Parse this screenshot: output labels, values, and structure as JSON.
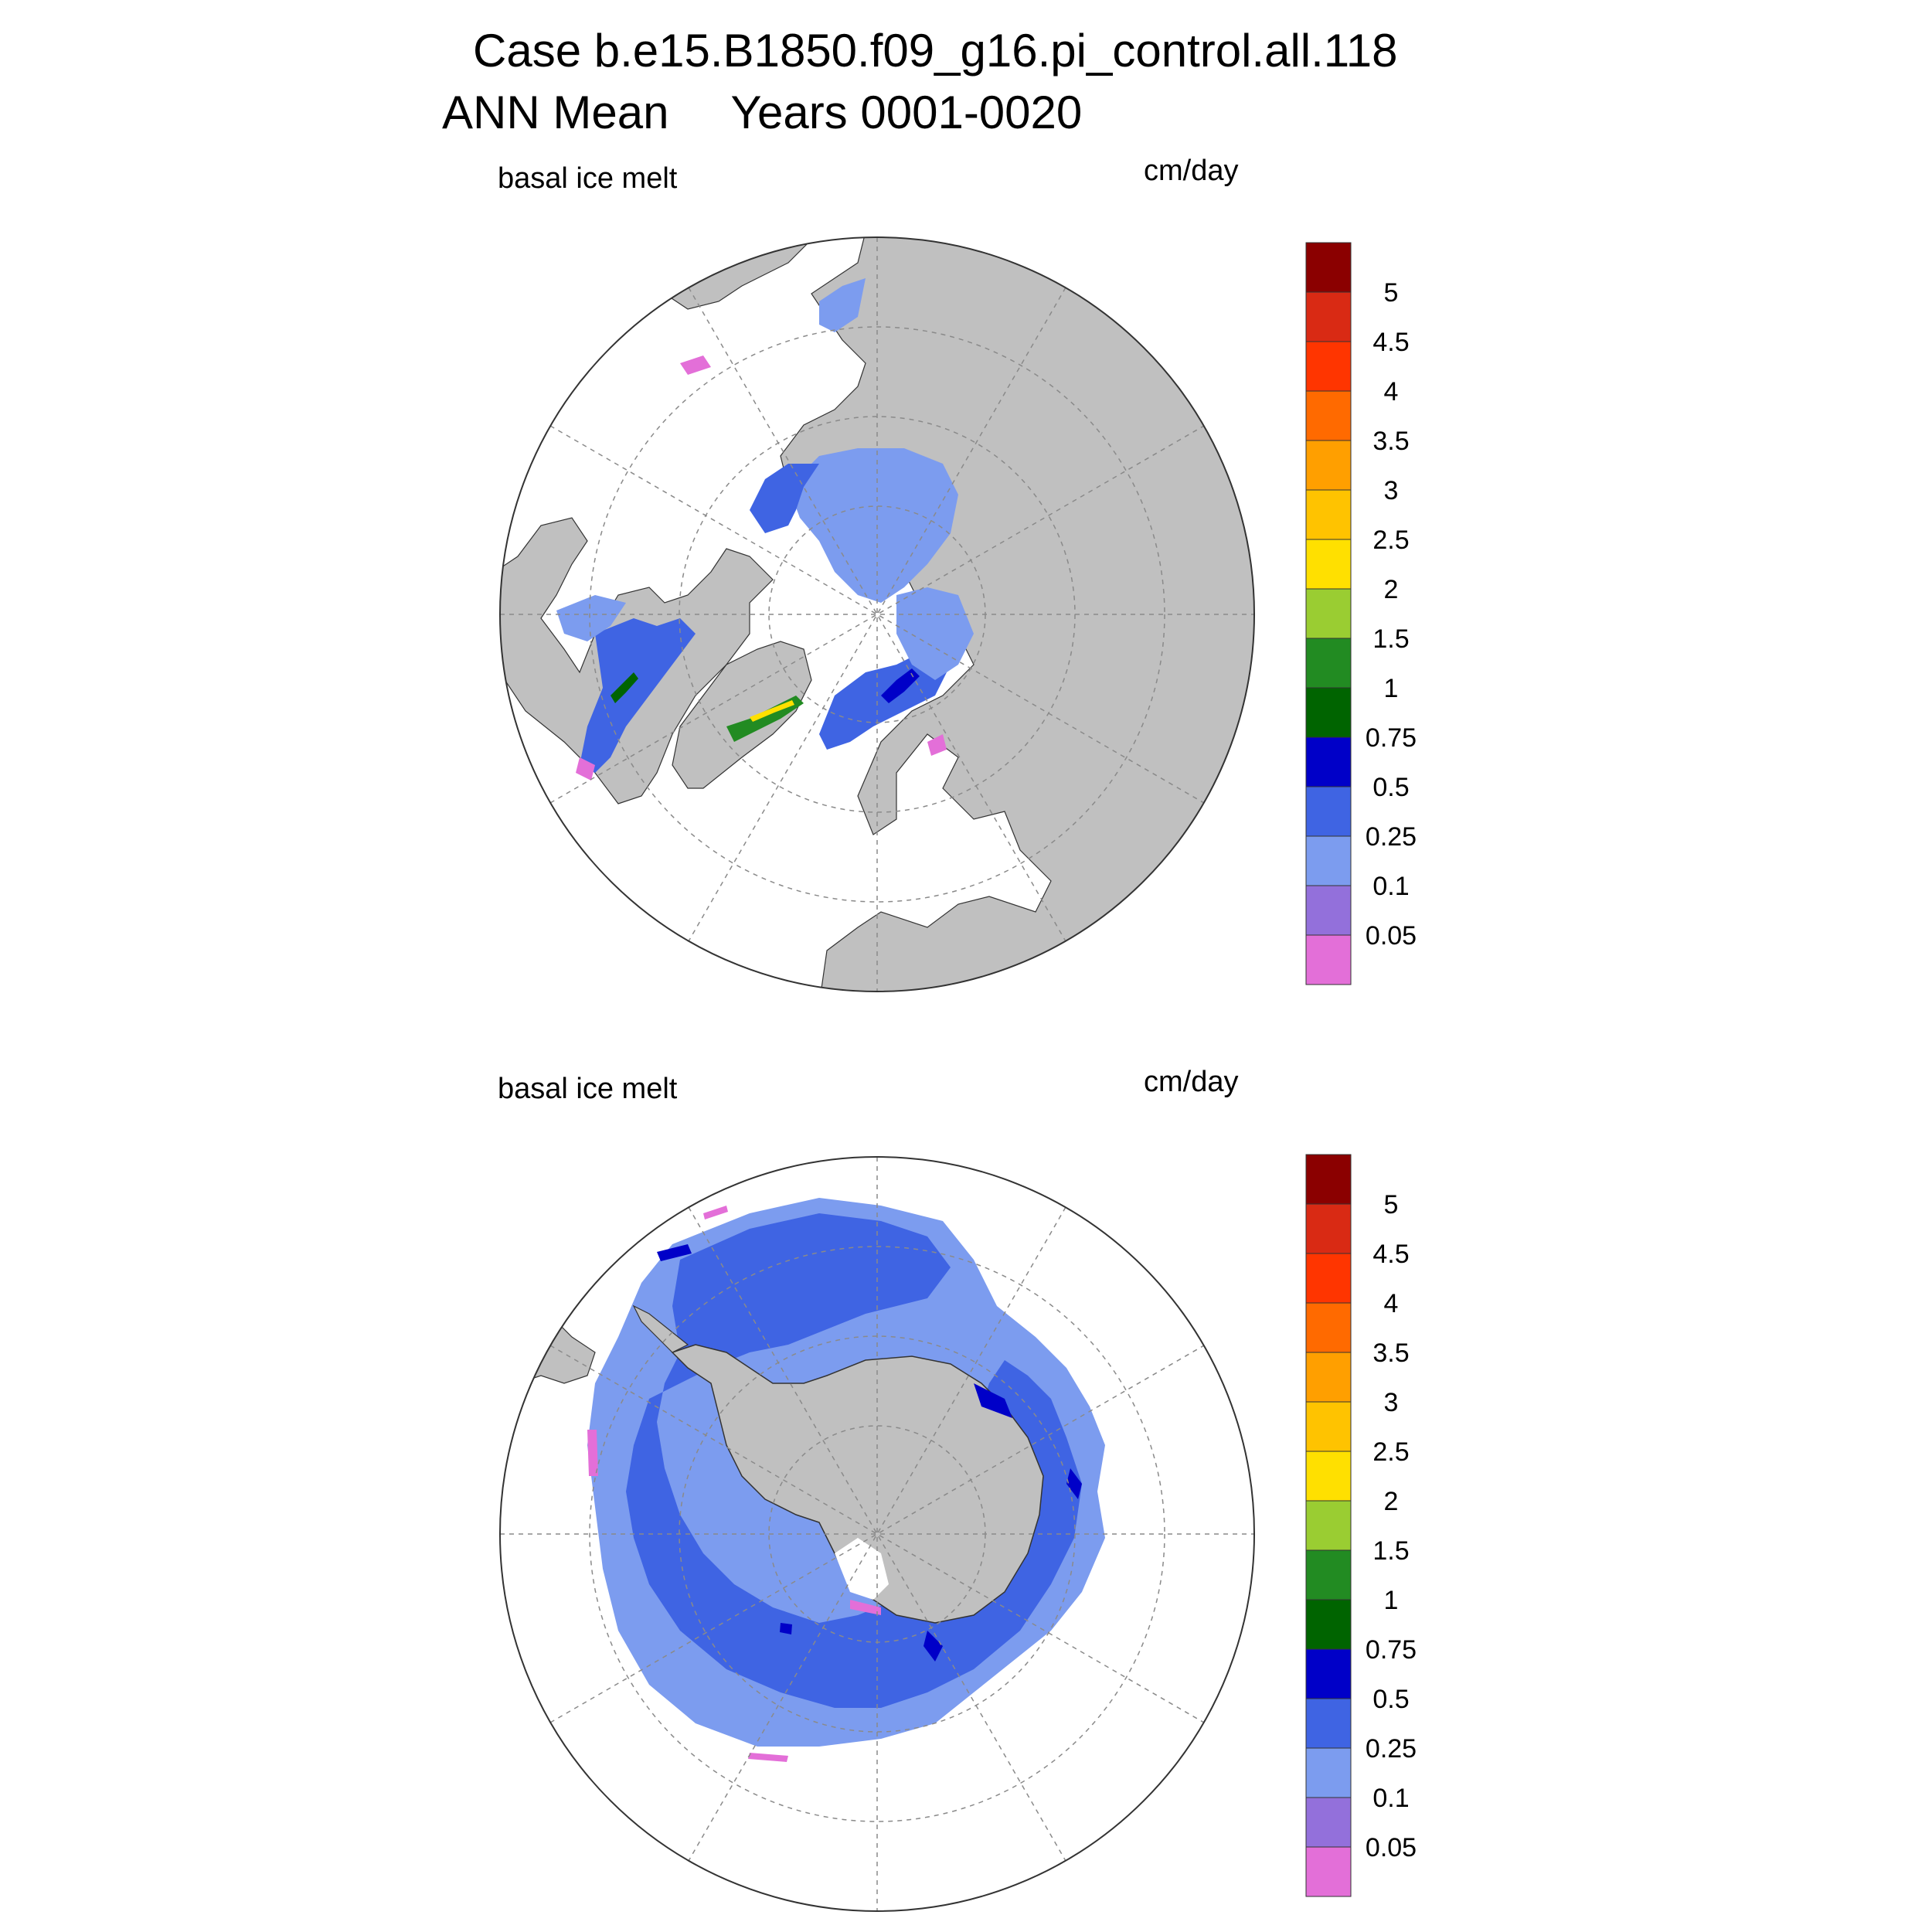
{
  "header": {
    "title_line1": "Case b.e15.B1850.f09_g16.pi_control.all.118",
    "title_line2_left": "ANN Mean",
    "title_line2_right": "Years 0001-0020"
  },
  "panels": [
    {
      "id": "north",
      "hemisphere": "Northern Hemisphere polar stereographic",
      "left_label": "basal ice melt",
      "right_label": "cm/day"
    },
    {
      "id": "south",
      "hemisphere": "Southern Hemisphere polar stereographic",
      "left_label": "basal ice melt",
      "right_label": "cm/day"
    }
  ],
  "colorbar": {
    "levels": [
      "0.05",
      "0.1",
      "0.25",
      "0.5",
      "0.75",
      "1",
      "1.5",
      "2",
      "2.5",
      "3",
      "3.5",
      "4",
      "4.5",
      "5"
    ],
    "colors": [
      "#e36fd8",
      "#9370db",
      "#7c9cef",
      "#3f64e3",
      "#0000c8",
      "#006400",
      "#228b22",
      "#9acd32",
      "#ffe000",
      "#ffc300",
      "#ff9f00",
      "#ff6a00",
      "#ff3500",
      "#d92a14",
      "#8b0000"
    ]
  },
  "map_colors": {
    "land": "#c0c0c0",
    "ocean": "#ffffff",
    "grid": "#8a8a8a"
  }
}
